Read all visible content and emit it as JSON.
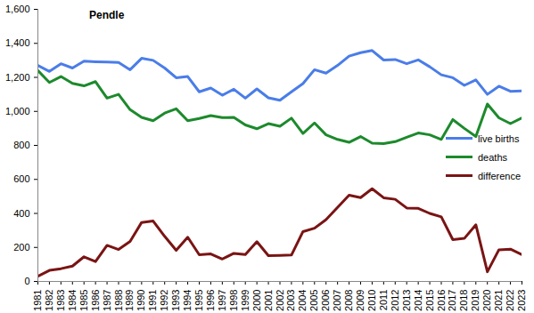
{
  "chart_data": {
    "type": "line",
    "title": "Pendle",
    "x": [
      1981,
      1982,
      1983,
      1984,
      1985,
      1986,
      1987,
      1988,
      1989,
      1990,
      1991,
      1992,
      1993,
      1994,
      1995,
      1996,
      1997,
      1998,
      1999,
      2000,
      2001,
      2002,
      2003,
      2004,
      2005,
      2006,
      2007,
      2008,
      2009,
      2010,
      2011,
      2012,
      2013,
      2014,
      2015,
      2016,
      2017,
      2018,
      2019,
      2020,
      2021,
      2022,
      2023
    ],
    "xlim": [
      1981,
      2023
    ],
    "xticks": [
      1981,
      1982,
      1983,
      1984,
      1985,
      1986,
      1987,
      1988,
      1989,
      1990,
      1991,
      1992,
      1993,
      1994,
      1995,
      1996,
      1997,
      1998,
      1999,
      2000,
      2001,
      2002,
      2003,
      2004,
      2005,
      2006,
      2007,
      2008,
      2009,
      2010,
      2011,
      2012,
      2013,
      2014,
      2015,
      2016,
      2017,
      2018,
      2019,
      2020,
      2021,
      2022,
      2023
    ],
    "ylim": [
      0,
      1600
    ],
    "yticks": [
      0,
      200,
      400,
      600,
      800,
      {
        "value": 1000,
        "label": "1,000"
      },
      {
        "value": 1200,
        "label": "1,200"
      },
      {
        "value": 1400,
        "label": "1,400"
      },
      {
        "value": 1600,
        "label": "1,600"
      }
    ],
    "grid": false,
    "legend": "right",
    "series": [
      {
        "name": "live births",
        "color": "#4a7de8",
        "values": [
          1270,
          1235,
          1280,
          1255,
          1295,
          1292,
          1290,
          1288,
          1245,
          1312,
          1300,
          1255,
          1198,
          1205,
          1115,
          1137,
          1095,
          1130,
          1078,
          1132,
          1080,
          1065,
          1115,
          1163,
          1245,
          1225,
          1270,
          1325,
          1345,
          1358,
          1302,
          1305,
          1280,
          1303,
          1262,
          1215,
          1198,
          1153,
          1185,
          1100,
          1148,
          1118,
          1120
        ]
      },
      {
        "name": "deaths",
        "color": "#1c8a2c",
        "values": [
          1240,
          1170,
          1205,
          1165,
          1150,
          1175,
          1078,
          1100,
          1010,
          965,
          945,
          990,
          1015,
          945,
          958,
          975,
          963,
          965,
          920,
          898,
          928,
          912,
          960,
          870,
          932,
          862,
          835,
          818,
          852,
          813,
          810,
          822,
          848,
          873,
          862,
          835,
          952,
          900,
          852,
          1043,
          962,
          928,
          962
        ]
      },
      {
        "name": "difference",
        "color": "#7a1414",
        "values": [
          30,
          65,
          75,
          90,
          145,
          117,
          212,
          188,
          235,
          347,
          355,
          265,
          183,
          260,
          157,
          162,
          132,
          165,
          158,
          234,
          152,
          153,
          155,
          293,
          313,
          363,
          435,
          507,
          493,
          545,
          492,
          483,
          432,
          430,
          400,
          380,
          246,
          253,
          333,
          57,
          186,
          190,
          158
        ]
      }
    ]
  }
}
